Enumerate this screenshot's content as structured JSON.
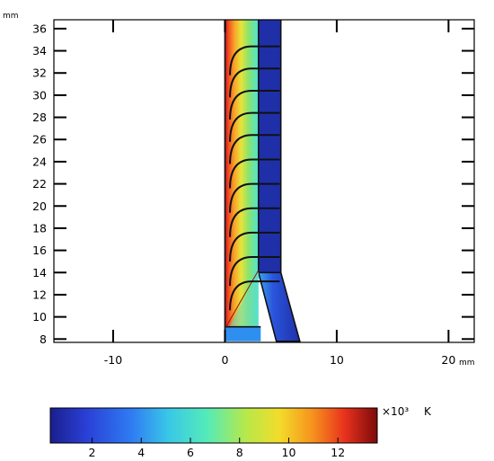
{
  "chart_data": {
    "type": "heatmap",
    "title": "",
    "x_unit": "mm",
    "y_unit": "mm",
    "xlim": [
      -15.3,
      22.3
    ],
    "ylim": [
      7.7,
      36.8
    ],
    "x_ticks": [
      -10,
      0,
      10,
      20
    ],
    "y_ticks": [
      8,
      10,
      12,
      14,
      16,
      18,
      20,
      22,
      24,
      26,
      28,
      30,
      32,
      34,
      36
    ],
    "x_tick_labels": [
      "-10",
      "0",
      "10",
      "20"
    ],
    "y_tick_labels": [
      "8",
      "10",
      "12",
      "14",
      "16",
      "18",
      "20",
      "22",
      "24",
      "26",
      "28",
      "30",
      "32",
      "34",
      "36"
    ],
    "colorbar": {
      "colormap": "jet",
      "range": [
        0.3,
        13.6
      ],
      "ticks": [
        2,
        4,
        6,
        8,
        10,
        12
      ],
      "tick_labels": [
        "2",
        "4",
        "6",
        "8",
        "10",
        "12"
      ],
      "multiplier": "×10³",
      "unit": "K"
    },
    "geometry": {
      "hot_channel": {
        "x": [
          0,
          3
        ],
        "y": [
          9,
          36.8
        ],
        "min_K": 3000,
        "max_K": 13600
      },
      "outer_wall": {
        "x": [
          3,
          5
        ],
        "y": [
          14,
          36.8
        ],
        "temperature_K": 800
      },
      "tapered_wall": {
        "points": [
          [
            3,
            14
          ],
          [
            5,
            14
          ],
          [
            6.7,
            7.8
          ],
          [
            4.6,
            7.8
          ]
        ]
      },
      "base_block": {
        "x": [
          0,
          3.2
        ],
        "y": [
          7.8,
          9.1
        ],
        "temperature_K": 3200
      },
      "isotherm_y": [
        34.4,
        32.4,
        30.4,
        28.4,
        26.4,
        24.2,
        22.0,
        19.8,
        17.6,
        15.4,
        13.2
      ]
    }
  }
}
